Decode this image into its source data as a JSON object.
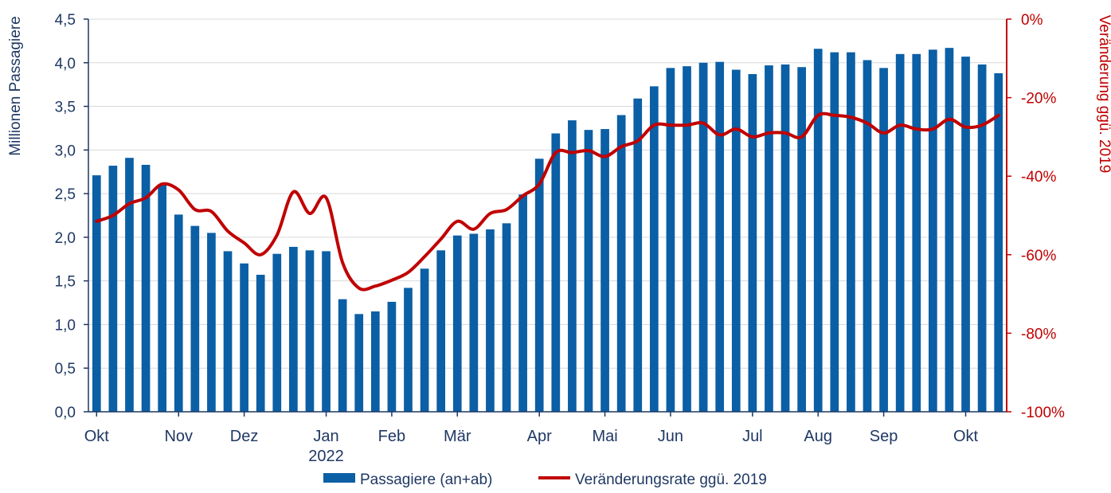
{
  "chart_data": {
    "type": "bar+line",
    "title": "",
    "colors": {
      "bars": "#0b5fa5",
      "line": "#c00000",
      "left_axis": "#1f3864",
      "right_axis": "#c00000",
      "grid": "#d9d9d9"
    },
    "left_axis": {
      "label": "Millionen Passagiere",
      "ylim": [
        0,
        4.5
      ],
      "ticks": [
        "0,0",
        "0,5",
        "1,0",
        "1,5",
        "2,0",
        "2,5",
        "3,0",
        "3,5",
        "4,0",
        "4,5"
      ]
    },
    "right_axis": {
      "label": "Veränderung ggü. 2019",
      "ylim": [
        -100,
        0
      ],
      "ticks": [
        "-100%",
        "-80%",
        "-60%",
        "-40%",
        "-20%",
        "0%"
      ]
    },
    "x_month_labels": [
      {
        "label": "Okt",
        "at": 0
      },
      {
        "label": "Nov",
        "at": 5
      },
      {
        "label": "Dez",
        "at": 9
      },
      {
        "label": "Jan",
        "at": 14
      },
      {
        "label": "2022",
        "at": 14,
        "row": 2
      },
      {
        "label": "Feb",
        "at": 18
      },
      {
        "label": "Mär",
        "at": 22
      },
      {
        "label": "Apr",
        "at": 27
      },
      {
        "label": "Mai",
        "at": 31
      },
      {
        "label": "Jun",
        "at": 35
      },
      {
        "label": "Jul",
        "at": 40
      },
      {
        "label": "Aug",
        "at": 44
      },
      {
        "label": "Sep",
        "at": 48
      },
      {
        "label": "Okt",
        "at": 53
      }
    ],
    "series": [
      {
        "name": "Passagiere (an+ab)",
        "type": "bar",
        "axis": "left",
        "values": [
          2.71,
          2.82,
          2.91,
          2.83,
          2.6,
          2.26,
          2.13,
          2.05,
          1.84,
          1.7,
          1.57,
          1.81,
          1.89,
          1.85,
          1.84,
          1.29,
          1.12,
          1.15,
          1.26,
          1.42,
          1.64,
          1.85,
          2.02,
          2.04,
          2.09,
          2.16,
          2.49,
          2.9,
          3.19,
          3.34,
          3.23,
          3.24,
          3.4,
          3.59,
          3.73,
          3.94,
          3.96,
          4.0,
          4.01,
          3.92,
          3.87,
          3.97,
          3.98,
          3.95,
          4.16,
          4.12,
          4.12,
          4.03,
          3.94,
          4.1,
          4.1,
          4.15,
          4.17,
          4.07,
          3.98,
          3.88
        ]
      },
      {
        "name": "Veränderungsrate ggü. 2019",
        "type": "line",
        "axis": "right",
        "values": [
          -51.5,
          -50,
          -47,
          -45.5,
          -42,
          -43.5,
          -48.5,
          -49,
          -54,
          -57,
          -60,
          -55,
          -44,
          -49.5,
          -45.5,
          -62,
          -68.5,
          -68,
          -66.5,
          -64.5,
          -60.5,
          -56,
          -51.5,
          -53.5,
          -49.5,
          -48.5,
          -45,
          -42,
          -34,
          -34,
          -33.5,
          -35,
          -32.5,
          -31,
          -27,
          -27,
          -27,
          -26.5,
          -29.5,
          -28,
          -30,
          -29,
          -29,
          -30,
          -24.5,
          -24.5,
          -25,
          -26.5,
          -29,
          -27,
          -28,
          -28,
          -25.5,
          -27.5,
          -27,
          -24.5
        ]
      }
    ],
    "legend": [
      {
        "label": "Passagiere (an+ab)",
        "kind": "bar"
      },
      {
        "label": "Veränderungsrate ggü. 2019",
        "kind": "line"
      }
    ]
  }
}
